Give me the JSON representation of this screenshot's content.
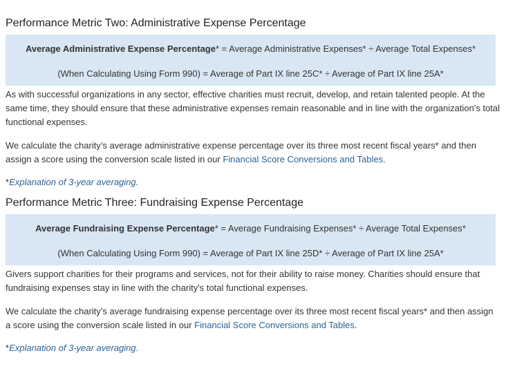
{
  "metric2": {
    "title": "Performance Metric Two: Administrative Expense Percentage",
    "formula_term": "Average Administrative Expense Percentage",
    "formula_rest": "* = Average Administrative Expenses* ÷ Average Total Expenses*",
    "form990": "(When Calculating Using Form 990) = Average of Part IX line 25C* ÷ Average of Part IX line 25A*",
    "para1": "As with successful organizations in any sector, effective charities must recruit, develop, and retain talented people. At the same time, they should ensure that these administrative expenses remain reasonable and in line with the organization's total functional expenses.",
    "para2_text": "We calculate the charity’s average administrative expense percentage over its three most recent fiscal years* and then assign a score using the conversion scale listed in our ",
    "para2_link": "Financial Score Conversions and Tables.",
    "note_star": "*",
    "note_link": "Explanation of 3-year averaging."
  },
  "metric3": {
    "title": "Performance Metric Three: Fundraising Expense Percentage",
    "formula_term": "Average Fundraising Expense Percentage",
    "formula_rest": "* = Average Fundraising Expenses* ÷ Average Total Expenses*",
    "form990": "(When Calculating Using Form 990) = Average of Part IX line 25D* ÷ Average of Part IX line 25A*",
    "para1": "Givers support charities for their programs and services, not for their ability to raise money. Charities should ensure that fundraising expenses stay in line with the charity's total functional expenses.",
    "para2_text": "We calculate the charity’s average fundraising expense percentage over its three most recent fiscal years* and then assign a score using the conversion scale listed in our ",
    "para2_link": "Financial Score Conversions and Tables",
    "para2_end": ".",
    "note_star": "*",
    "note_link": "Explanation of 3-year averaging."
  }
}
